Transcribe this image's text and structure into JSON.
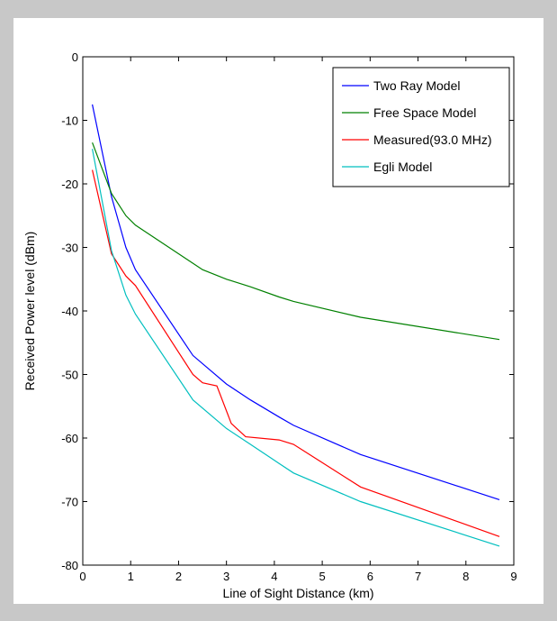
{
  "window": {
    "background": "#c8c8c8",
    "figure_background": "#ffffff"
  },
  "chart_data": {
    "type": "line",
    "title": "",
    "xlabel": "Line of Sight Distance (km)",
    "ylabel": "Received Power level (dBm)",
    "xlim": [
      0,
      9
    ],
    "ylim": [
      -80,
      0
    ],
    "xticks": [
      0,
      1,
      2,
      3,
      4,
      5,
      6,
      7,
      8,
      9
    ],
    "yticks": [
      0,
      -10,
      -20,
      -30,
      -40,
      -50,
      -60,
      -70,
      -80
    ],
    "grid": false,
    "legend_position": "top-right",
    "series": [
      {
        "name": "Two Ray Model",
        "color": "#0000ff",
        "points": [
          [
            0.2,
            -7.5
          ],
          [
            0.6,
            -22
          ],
          [
            0.9,
            -30
          ],
          [
            1.1,
            -33.5
          ],
          [
            2.3,
            -47
          ],
          [
            3.0,
            -51.5
          ],
          [
            3.5,
            -54
          ],
          [
            4.1,
            -56.7
          ],
          [
            4.4,
            -58
          ],
          [
            5.8,
            -62.6
          ],
          [
            8.7,
            -69.7
          ]
        ]
      },
      {
        "name": "Free Space Model",
        "color": "#008000",
        "points": [
          [
            0.2,
            -13.5
          ],
          [
            0.6,
            -21.5
          ],
          [
            0.9,
            -25
          ],
          [
            1.1,
            -26.5
          ],
          [
            2.3,
            -32.5
          ],
          [
            2.5,
            -33.5
          ],
          [
            3.0,
            -35
          ],
          [
            3.5,
            -36.2
          ],
          [
            4.1,
            -37.8
          ],
          [
            4.4,
            -38.5
          ],
          [
            5.8,
            -41
          ],
          [
            8.7,
            -44.5
          ]
        ]
      },
      {
        "name": "Measured(93.0 MHz)",
        "color": "#ff0000",
        "points": [
          [
            0.2,
            -17.8
          ],
          [
            0.6,
            -31
          ],
          [
            0.9,
            -34.5
          ],
          [
            1.1,
            -36
          ],
          [
            2.3,
            -50
          ],
          [
            2.5,
            -51.3
          ],
          [
            2.8,
            -51.8
          ],
          [
            3.1,
            -57.7
          ],
          [
            3.4,
            -59.8
          ],
          [
            4.1,
            -60.3
          ],
          [
            4.4,
            -61
          ],
          [
            5.8,
            -67.7
          ],
          [
            8.7,
            -75.5
          ]
        ]
      },
      {
        "name": "Egli Model",
        "color": "#00bfbf",
        "points": [
          [
            0.2,
            -14.5
          ],
          [
            0.6,
            -30.5
          ],
          [
            0.9,
            -37.5
          ],
          [
            1.1,
            -40.5
          ],
          [
            2.3,
            -54
          ],
          [
            3.0,
            -58.5
          ],
          [
            3.5,
            -61
          ],
          [
            4.1,
            -64
          ],
          [
            4.4,
            -65.5
          ],
          [
            5.8,
            -70
          ],
          [
            8.7,
            -77
          ]
        ]
      }
    ]
  }
}
